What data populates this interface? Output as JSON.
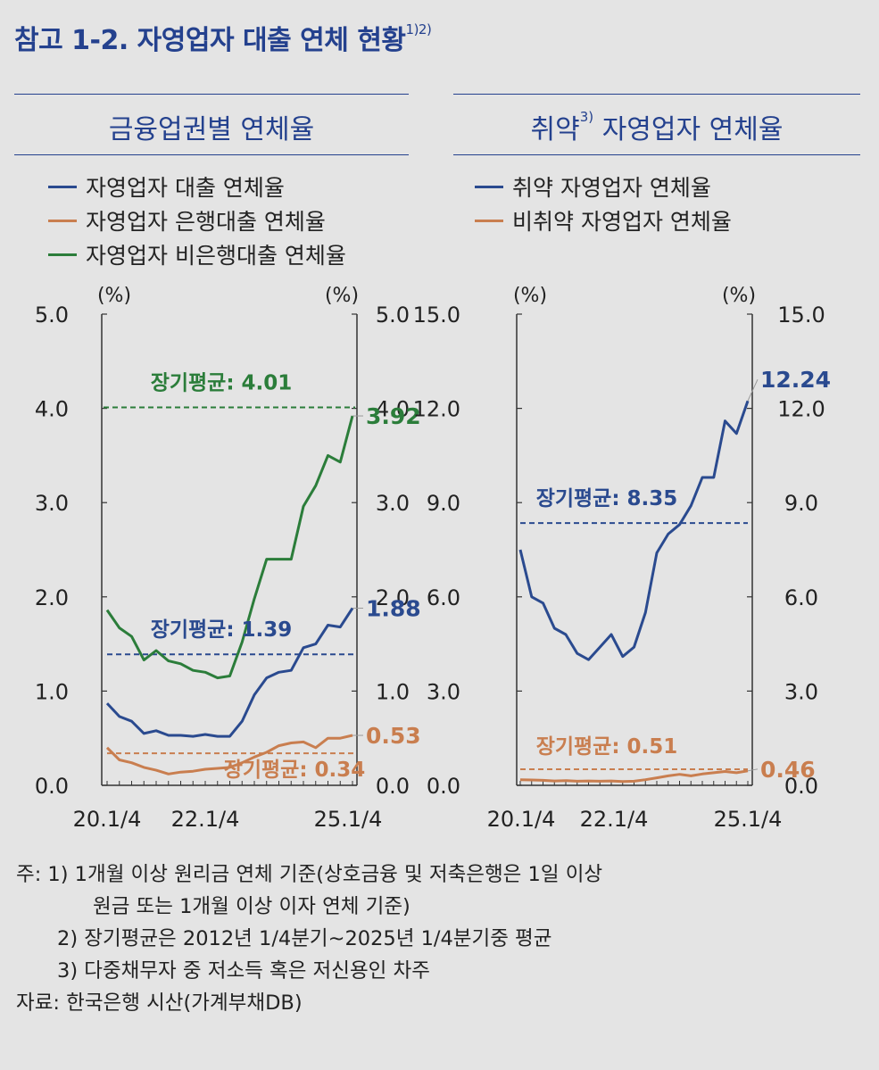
{
  "title": {
    "main": "참고 1-2. 자영업자 대출 연체 현황",
    "sup": "1)2)"
  },
  "left_panel": {
    "title": "금융업권별 연체율",
    "legend": [
      {
        "label": "자영업자 대출 연체율",
        "color": "#2a4a8f"
      },
      {
        "label": "자영업자 은행대출 연체율",
        "color": "#c97e4f"
      },
      {
        "label": "자영업자 비은행대출 연체율",
        "color": "#2b7d3a"
      }
    ]
  },
  "right_panel": {
    "title": "취약",
    "title_sup": "3)",
    "title_rest": " 자영업자 연체율",
    "legend": [
      {
        "label": "취약 자영업자 연체율",
        "color": "#2a4a8f"
      },
      {
        "label": "비취약 자영업자 연체율",
        "color": "#c97e4f"
      }
    ]
  },
  "chart_data": [
    {
      "type": "line",
      "unit": "(%)",
      "ylim": [
        0,
        5
      ],
      "yticks": [
        "0.0",
        "1.0",
        "2.0",
        "3.0",
        "4.0",
        "5.0"
      ],
      "xticks": [
        "20.1/4",
        "22.1/4",
        "25.1/4"
      ],
      "xtick_index": [
        0,
        8,
        20
      ],
      "series": [
        {
          "name": "자영업자 대출 연체율",
          "color": "#2a4a8f",
          "values": [
            0.87,
            0.73,
            0.68,
            0.55,
            0.58,
            0.53,
            0.53,
            0.52,
            0.54,
            0.52,
            0.52,
            0.68,
            0.96,
            1.14,
            1.2,
            1.22,
            1.46,
            1.5,
            1.7,
            1.68,
            1.88
          ],
          "end_label": "1.88",
          "avg": 1.39,
          "avg_label": "장기평균: 1.39"
        },
        {
          "name": "자영업자 은행대출 연체율",
          "color": "#c97e4f",
          "values": [
            0.4,
            0.27,
            0.24,
            0.19,
            0.16,
            0.12,
            0.14,
            0.15,
            0.17,
            0.18,
            0.19,
            0.24,
            0.3,
            0.35,
            0.42,
            0.45,
            0.46,
            0.4,
            0.5,
            0.5,
            0.53
          ],
          "end_label": "0.53",
          "avg": 0.34,
          "avg_label": "장기평균: 0.34"
        },
        {
          "name": "자영업자 비은행대출 연체율",
          "color": "#2b7d3a",
          "values": [
            1.86,
            1.67,
            1.58,
            1.33,
            1.43,
            1.32,
            1.29,
            1.22,
            1.2,
            1.14,
            1.16,
            1.52,
            1.98,
            2.4,
            2.4,
            2.4,
            2.96,
            3.18,
            3.5,
            3.43,
            3.92
          ],
          "end_label": "3.92",
          "avg": 4.01,
          "avg_label": "장기평균: 4.01"
        }
      ]
    },
    {
      "type": "line",
      "unit": "(%)",
      "ylim": [
        0,
        15
      ],
      "yticks": [
        "0.0",
        "3.0",
        "6.0",
        "9.0",
        "12.0",
        "15.0"
      ],
      "xticks": [
        "20.1/4",
        "22.1/4",
        "25.1/4"
      ],
      "xtick_index": [
        0,
        8,
        20
      ],
      "series": [
        {
          "name": "취약 자영업자 연체율",
          "color": "#2a4a8f",
          "values": [
            7.5,
            6.0,
            5.8,
            5.0,
            4.8,
            4.2,
            4.0,
            4.4,
            4.8,
            4.1,
            4.4,
            5.5,
            7.4,
            8.0,
            8.3,
            8.9,
            9.8,
            9.8,
            11.6,
            11.2,
            12.24
          ],
          "end_label": "12.24",
          "avg": 8.35,
          "avg_label": "장기평균: 8.35"
        },
        {
          "name": "비취약 자영업자 연체율",
          "color": "#c97e4f",
          "values": [
            0.18,
            0.17,
            0.16,
            0.14,
            0.15,
            0.13,
            0.14,
            0.13,
            0.14,
            0.12,
            0.13,
            0.18,
            0.24,
            0.3,
            0.35,
            0.3,
            0.36,
            0.4,
            0.44,
            0.4,
            0.46
          ],
          "end_label": "0.46",
          "avg": 0.51,
          "avg_label": "장기평균: 0.51"
        }
      ]
    }
  ],
  "notes": [
    "주:  1) 1개월 이상 원리금 연체 기준(상호금융 및 저축은행은 1일 이상",
    "원금 또는 1개월 이상 이자 연체 기준)",
    "2) 장기평균은 2012년 1/4분기~2025년 1/4분기중 평균",
    "3) 다중채무자 중 저소득 혹은 저신용인 차주",
    "자료:  한국은행 시산(가계부채DB)"
  ]
}
